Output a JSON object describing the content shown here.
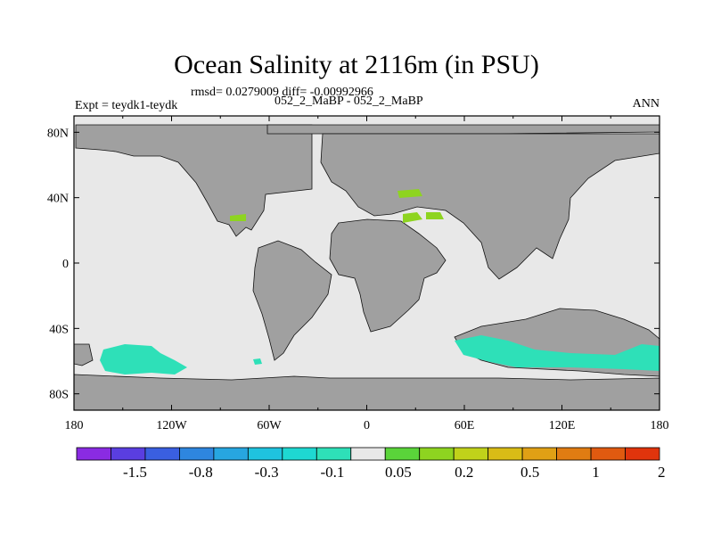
{
  "chart_data": {
    "type": "heatmap",
    "title": "Ocean Salinity at 2116m (in PSU)",
    "subtitle": "rmsd= 0.0279009 diff= -0.00992966",
    "center_label": "052_2_MaBP - 052_2_MaBP",
    "left_label": "Expt = teydk1-teydk",
    "right_label": "ANN",
    "x_ticks": [
      "180",
      "120W",
      "60W",
      "0",
      "60E",
      "120E",
      "180"
    ],
    "y_ticks": [
      "80N",
      "40N",
      "0",
      "40S",
      "80S"
    ],
    "x_range": [
      -180,
      180
    ],
    "y_range": [
      -90,
      90
    ],
    "colorbar": {
      "colors": [
        "#8a2be2",
        "#5a3ee0",
        "#3a5fe0",
        "#2e86df",
        "#27a6e0",
        "#1fc3df",
        "#1ed8d2",
        "#2ee0b8",
        "#e8e8e8",
        "#5ad43a",
        "#8ed420",
        "#c0d21a",
        "#d9bc16",
        "#e0a015",
        "#e07c12",
        "#e05a10",
        "#e0340c"
      ],
      "labels": [
        "-1.5",
        "-0.8",
        "-0.3",
        "-0.1",
        "0.05",
        "0.2",
        "0.5",
        "1",
        "2"
      ]
    },
    "land_color": "#a0a0a0",
    "ocean_color": "#e8e8e8"
  }
}
